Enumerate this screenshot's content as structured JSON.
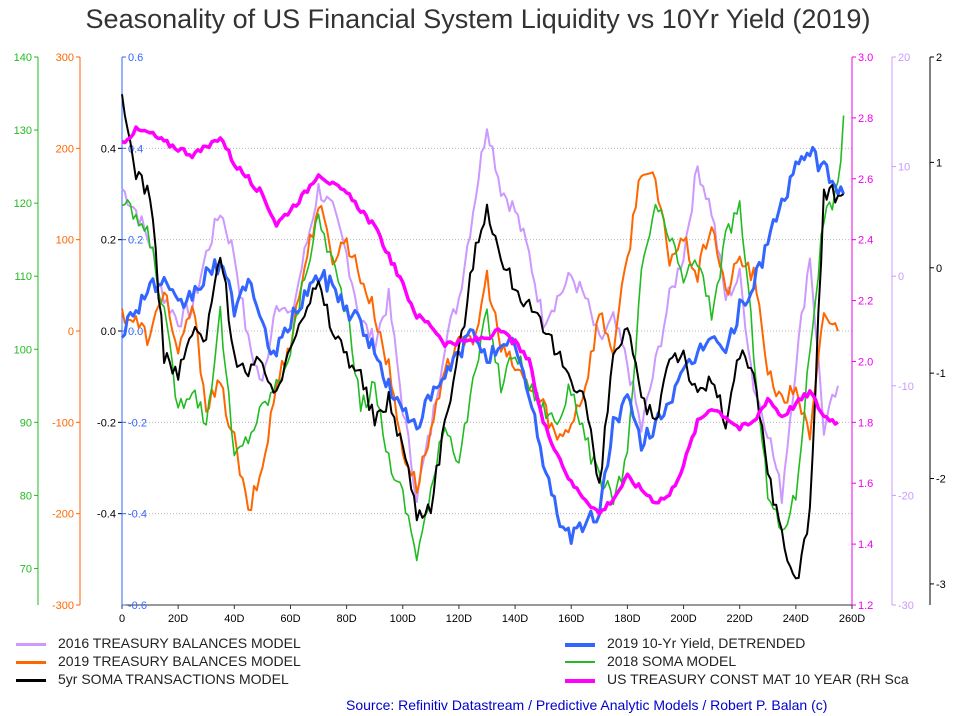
{
  "chart_data": {
    "type": "line",
    "title": "Seasonality of US Financial System Liquidity vs 10Yr Yield (2019)",
    "x": {
      "range": [
        0,
        260
      ],
      "ticks": [
        0,
        20,
        40,
        60,
        80,
        100,
        120,
        140,
        160,
        180,
        200,
        220,
        240,
        260
      ],
      "tick_labels": [
        "0",
        "20D",
        "40D",
        "60D",
        "80D",
        "100D",
        "120D",
        "140D",
        "160D",
        "180D",
        "200D",
        "220D",
        "240D",
        "260D"
      ]
    },
    "axes": [
      {
        "id": "green",
        "side": "left",
        "color": "#22bb22",
        "range": [
          65,
          140
        ],
        "ticks": [
          70,
          80,
          90,
          100,
          110,
          120,
          130,
          140
        ],
        "tick_labels": [
          "70",
          "80",
          "90",
          "100",
          "110",
          "120",
          "130",
          "140"
        ]
      },
      {
        "id": "orange",
        "side": "left",
        "color": "#ff6600",
        "range": [
          -300,
          300
        ],
        "ticks": [
          -300,
          -200,
          -100,
          0,
          100,
          200,
          300
        ],
        "tick_labels": [
          "-300",
          "-200",
          "-100",
          "0",
          "100",
          "200",
          "300"
        ]
      },
      {
        "id": "black",
        "side": "left",
        "color": "#000000",
        "range": [
          -0.6,
          0.6
        ],
        "ticks": [
          -0.4,
          -0.2,
          0.0,
          0.2,
          0.4
        ],
        "tick_labels": [
          "-0.4",
          "-0.2",
          "0.0",
          "0.2",
          "0.4"
        ]
      },
      {
        "id": "blue",
        "side": "left",
        "color": "#3366ff",
        "range": [
          -0.6,
          0.6
        ],
        "ticks": [
          -0.6,
          -0.4,
          -0.2,
          0.0,
          0.2,
          0.4,
          0.6
        ],
        "tick_labels": [
          "-0.6",
          "-0.4",
          "-0.2",
          "0.0",
          "0.2",
          "0.4",
          "0.6"
        ]
      },
      {
        "id": "magenta",
        "side": "right",
        "color": "#ee00ee",
        "range": [
          1.2,
          3.0
        ],
        "ticks": [
          1.2,
          1.4,
          1.6,
          1.8,
          2.0,
          2.2,
          2.4,
          2.6,
          2.8,
          3.0
        ],
        "tick_labels": [
          "1.2",
          "1.4",
          "1.6",
          "1.8",
          "2.0",
          "2.2",
          "2.4",
          "2.6",
          "2.8",
          "3.0"
        ]
      },
      {
        "id": "lavender",
        "side": "right",
        "color": "#cc99ff",
        "range": [
          -30,
          20
        ],
        "ticks": [
          -30,
          -20,
          -10,
          0,
          10,
          20
        ],
        "tick_labels": [
          "-30",
          "-20",
          "-10",
          "0",
          "10",
          "20"
        ]
      },
      {
        "id": "far-right",
        "side": "right",
        "color": "#000000",
        "range": [
          -3.2,
          2.0
        ],
        "ticks": [
          -3,
          -2,
          -1,
          0,
          1,
          2
        ],
        "tick_labels": [
          "-3",
          "-2",
          "-1",
          "0",
          "1",
          "2"
        ]
      }
    ],
    "grid": "horizontal-dotted",
    "series": [
      {
        "name": "2016 TREASURY BALANCES MODEL",
        "color": "#cc99ff",
        "width": 2,
        "axis": "lavender",
        "x": [
          0,
          5,
          10,
          15,
          20,
          25,
          30,
          35,
          40,
          45,
          50,
          55,
          60,
          65,
          70,
          75,
          80,
          85,
          90,
          95,
          100,
          105,
          110,
          115,
          120,
          125,
          130,
          135,
          140,
          145,
          150,
          155,
          160,
          165,
          170,
          175,
          180,
          185,
          190,
          195,
          200,
          205,
          210,
          215,
          220,
          225,
          230,
          235,
          240,
          245,
          250,
          255
        ],
        "y": [
          8,
          6,
          3,
          -2,
          -4,
          -3,
          2,
          6,
          2,
          -6,
          -10,
          -2,
          -4,
          2,
          8,
          6,
          2,
          -4,
          -6,
          -2,
          -12,
          -20,
          -14,
          -6,
          -2,
          6,
          14,
          8,
          6,
          2,
          -4,
          -2,
          0,
          -2,
          -6,
          -4,
          -8,
          -14,
          -8,
          -2,
          2,
          10,
          6,
          -2,
          0,
          -10,
          -14,
          -20,
          -8,
          2,
          -14,
          -10
        ]
      },
      {
        "name": "2019 TREASURY BALANCES MODEL",
        "color": "#ff6600",
        "width": 2,
        "axis": "orange",
        "x": [
          0,
          5,
          10,
          15,
          20,
          25,
          30,
          35,
          40,
          45,
          50,
          55,
          60,
          65,
          70,
          75,
          80,
          85,
          90,
          95,
          100,
          105,
          110,
          115,
          120,
          125,
          130,
          135,
          140,
          145,
          150,
          155,
          160,
          165,
          170,
          175,
          180,
          185,
          190,
          195,
          200,
          205,
          210,
          215,
          220,
          225,
          230,
          235,
          240,
          245,
          250,
          255
        ],
        "y": [
          20,
          10,
          -10,
          50,
          -30,
          30,
          -80,
          -60,
          -120,
          -200,
          -150,
          -60,
          -10,
          70,
          140,
          80,
          100,
          60,
          20,
          -40,
          -130,
          -170,
          -110,
          -50,
          0,
          -20,
          60,
          -20,
          -40,
          -60,
          -80,
          -120,
          -100,
          -60,
          20,
          -20,
          80,
          180,
          160,
          80,
          100,
          60,
          120,
          40,
          80,
          60,
          -40,
          -80,
          -60,
          -120,
          20,
          0
        ]
      },
      {
        "name": "5yr SOMA TRANSACTIONS MODEL",
        "color": "#000000",
        "width": 2,
        "axis": "black",
        "x": [
          0,
          5,
          10,
          15,
          20,
          25,
          30,
          35,
          40,
          45,
          50,
          55,
          60,
          65,
          70,
          75,
          80,
          85,
          90,
          95,
          100,
          105,
          110,
          115,
          120,
          125,
          130,
          135,
          140,
          145,
          150,
          155,
          160,
          165,
          170,
          175,
          180,
          185,
          190,
          195,
          200,
          205,
          210,
          215,
          220,
          225,
          230,
          235,
          240,
          245,
          250,
          257
        ],
        "y": [
          0.5,
          0.35,
          0.3,
          -0.05,
          -0.1,
          0.0,
          -0.02,
          0.18,
          -0.05,
          -0.1,
          -0.06,
          -0.15,
          -0.02,
          0.05,
          0.1,
          0.0,
          -0.05,
          -0.1,
          -0.2,
          -0.15,
          -0.25,
          -0.4,
          -0.38,
          -0.2,
          -0.05,
          0.15,
          0.28,
          0.15,
          0.1,
          0.05,
          0.0,
          -0.05,
          -0.1,
          -0.15,
          -0.35,
          -0.05,
          0.0,
          -0.15,
          -0.2,
          -0.05,
          -0.05,
          -0.15,
          -0.1,
          -0.2,
          -0.05,
          -0.1,
          -0.3,
          -0.45,
          -0.55,
          -0.4,
          0.3,
          0.3
        ]
      },
      {
        "name": "2019 10-Yr Yield, DETRENDED",
        "color": "#3366ff",
        "width": 3,
        "axis": "blue",
        "x": [
          0,
          5,
          10,
          15,
          20,
          25,
          30,
          35,
          40,
          45,
          50,
          55,
          60,
          65,
          70,
          75,
          80,
          85,
          90,
          95,
          100,
          105,
          110,
          115,
          120,
          125,
          130,
          135,
          140,
          145,
          150,
          155,
          160,
          165,
          170,
          175,
          180,
          185,
          190,
          195,
          200,
          205,
          210,
          215,
          220,
          225,
          230,
          235,
          240,
          245,
          250,
          257
        ],
        "y": [
          0.0,
          0.05,
          0.1,
          0.1,
          0.05,
          0.08,
          0.12,
          0.15,
          0.05,
          0.12,
          0.0,
          -0.05,
          0.02,
          0.08,
          0.12,
          0.1,
          0.05,
          0.02,
          -0.05,
          -0.12,
          -0.18,
          -0.2,
          -0.15,
          -0.1,
          -0.05,
          0.0,
          -0.05,
          -0.05,
          -0.02,
          -0.15,
          -0.28,
          -0.4,
          -0.45,
          -0.42,
          -0.4,
          -0.2,
          -0.15,
          -0.25,
          -0.2,
          -0.15,
          -0.1,
          -0.05,
          0.0,
          -0.05,
          0.05,
          0.1,
          0.2,
          0.28,
          0.35,
          0.4,
          0.35,
          0.3
        ]
      },
      {
        "name": "2018 SOMA MODEL",
        "color": "#22bb22",
        "width": 1.6,
        "axis": "green",
        "x": [
          0,
          5,
          10,
          15,
          20,
          25,
          30,
          35,
          40,
          45,
          50,
          55,
          60,
          65,
          70,
          75,
          80,
          85,
          90,
          95,
          100,
          105,
          110,
          115,
          120,
          125,
          130,
          135,
          140,
          145,
          150,
          155,
          160,
          165,
          170,
          175,
          180,
          185,
          190,
          195,
          200,
          205,
          210,
          215,
          220,
          225,
          230,
          235,
          240,
          245,
          250,
          255,
          257
        ],
        "y": [
          120,
          118,
          115,
          105,
          92,
          95,
          90,
          105,
          85,
          88,
          92,
          95,
          100,
          110,
          118,
          112,
          105,
          92,
          95,
          85,
          80,
          72,
          80,
          90,
          85,
          95,
          105,
          95,
          100,
          95,
          92,
          90,
          95,
          88,
          82,
          80,
          85,
          110,
          120,
          115,
          110,
          112,
          105,
          115,
          120,
          100,
          80,
          75,
          80,
          100,
          118,
          122,
          132
        ]
      },
      {
        "name": "US TREASURY CONST MAT 10 YEAR (RH Sca",
        "color": "#ff00ff",
        "width": 3.5,
        "axis": "magenta",
        "x": [
          0,
          5,
          10,
          15,
          20,
          25,
          30,
          35,
          40,
          45,
          50,
          55,
          60,
          65,
          70,
          75,
          80,
          85,
          90,
          95,
          100,
          105,
          110,
          115,
          120,
          125,
          130,
          135,
          140,
          145,
          150,
          155,
          160,
          165,
          170,
          175,
          180,
          185,
          190,
          195,
          200,
          205,
          210,
          215,
          220,
          225,
          230,
          235,
          240,
          245,
          250,
          255
        ],
        "y": [
          2.72,
          2.76,
          2.75,
          2.72,
          2.7,
          2.68,
          2.7,
          2.74,
          2.65,
          2.6,
          2.55,
          2.45,
          2.5,
          2.55,
          2.62,
          2.58,
          2.55,
          2.5,
          2.44,
          2.35,
          2.25,
          2.15,
          2.12,
          2.06,
          2.06,
          2.07,
          2.08,
          2.1,
          2.06,
          2.0,
          1.8,
          1.7,
          1.6,
          1.55,
          1.5,
          1.55,
          1.62,
          1.58,
          1.54,
          1.56,
          1.66,
          1.8,
          1.85,
          1.82,
          1.78,
          1.8,
          1.88,
          1.82,
          1.86,
          1.9,
          1.82,
          1.8
        ]
      }
    ]
  },
  "legend": {
    "items": [
      {
        "label": "2016 TREASURY BALANCES MODEL",
        "color": "#cc99ff"
      },
      {
        "label": "2019 TREASURY BALANCES MODEL",
        "color": "#ff6600"
      },
      {
        "label": "5yr SOMA TRANSACTIONS MODEL",
        "color": "#000000"
      },
      {
        "label": "2019 10-Yr Yield, DETRENDED",
        "color": "#3366ff"
      },
      {
        "label": "2018 SOMA MODEL",
        "color": "#22bb22"
      },
      {
        "label": "US TREASURY CONST MAT 10 YEAR (RH Sca",
        "color": "#ff00ff"
      }
    ]
  },
  "source": "Source: Refinitiv Datastream / Predictive Analytic Models / Robert P. Balan (c)"
}
